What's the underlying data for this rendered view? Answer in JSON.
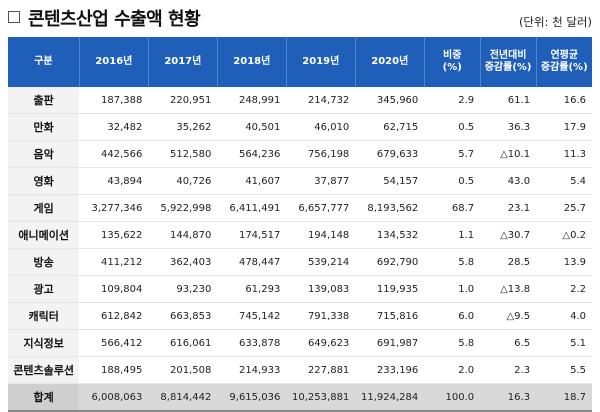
{
  "title": "콘텐츠산업 수출액 현황",
  "unit_note": "(단위: 천 달러)",
  "headers": [
    "구분",
    "2016년",
    "2017년",
    "2018년",
    "2019년",
    "2020년",
    "비중\n(%)",
    "전년대비\n증감률(%)",
    "연평균\n증감률(%)"
  ],
  "rows": [
    [
      "출판",
      "187,388",
      "220,951",
      "248,991",
      "214,732",
      "345,960",
      "2.9",
      "61.1",
      "16.6"
    ],
    [
      "만화",
      "32,482",
      "35,262",
      "40,501",
      "46,010",
      "62,715",
      "0.5",
      "36.3",
      "17.9"
    ],
    [
      "음악",
      "442,566",
      "512,580",
      "564,236",
      "756,198",
      "679,633",
      "5.7",
      "△10.1",
      "11.3"
    ],
    [
      "영화",
      "43,894",
      "40,726",
      "41,607",
      "37,877",
      "54,157",
      "0.5",
      "43.0",
      "5.4"
    ],
    [
      "게임",
      "3,277,346",
      "5,922,998",
      "6,411,491",
      "6,657,777",
      "8,193,562",
      "68.7",
      "23.1",
      "25.7"
    ],
    [
      "애니메이션",
      "135,622",
      "144,870",
      "174,517",
      "194,148",
      "134,532",
      "1.1",
      "△30.7",
      "△0.2"
    ],
    [
      "방송",
      "411,212",
      "362,403",
      "478,447",
      "539,214",
      "692,790",
      "5.8",
      "28.5",
      "13.9"
    ],
    [
      "광고",
      "109,804",
      "93,230",
      "61,293",
      "139,083",
      "119,935",
      "1.0",
      "△13.8",
      "2.2"
    ],
    [
      "캐릭터",
      "612,842",
      "663,853",
      "745,142",
      "791,338",
      "715,816",
      "6.0",
      "△9.5",
      "4.0"
    ],
    [
      "지식정보",
      "566,412",
      "616,061",
      "633,878",
      "649,623",
      "691,987",
      "5.8",
      "6.5",
      "5.1"
    ],
    [
      "콘텐츠솔루션",
      "188,495",
      "201,508",
      "214,933",
      "227,881",
      "233,196",
      "2.0",
      "2.3",
      "5.5"
    ]
  ],
  "total": [
    "합계",
    "6,008,063",
    "8,814,442",
    "9,615,036",
    "10,253,881",
    "11,924,284",
    "100.0",
    "16.3",
    "18.7"
  ]
}
